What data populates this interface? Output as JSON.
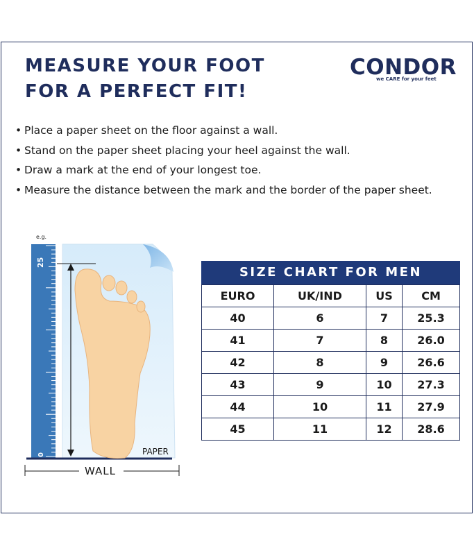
{
  "header": {
    "title_line1": "MEASURE YOUR FOOT",
    "title_line2": "FOR A PERFECT FIT!"
  },
  "logo": {
    "name": "CONDOR",
    "tagline": "we CARE for your feet",
    "color": "#1f2d5c"
  },
  "instructions": [
    "Place a paper sheet on the floor against a wall.",
    "Stand on the paper sheet placing your heel against the wall.",
    "Draw a mark at the end of your longest toe.",
    "Measure the distance between the mark and the border of the paper sheet."
  ],
  "illustration": {
    "example_label": "e.g.",
    "ruler_top": "25",
    "ruler_bottom": "0",
    "paper_label": "PAPER",
    "wall_label": "WALL"
  },
  "size_chart": {
    "title": "SIZE CHART FOR MEN",
    "headers": [
      "EURO",
      "UK/IND",
      "US",
      "CM"
    ],
    "rows": [
      [
        "40",
        "6",
        "7",
        "25.3"
      ],
      [
        "41",
        "7",
        "8",
        "26.0"
      ],
      [
        "42",
        "8",
        "9",
        "26.6"
      ],
      [
        "43",
        "9",
        "10",
        "27.3"
      ],
      [
        "44",
        "10",
        "11",
        "27.9"
      ],
      [
        "45",
        "11",
        "12",
        "28.6"
      ]
    ]
  },
  "colors": {
    "navy": "#1f2d5c",
    "table_header_bg": "#1f3a7a",
    "ruler_blue": "#3a78b8",
    "foot": "#f8d3a3"
  }
}
